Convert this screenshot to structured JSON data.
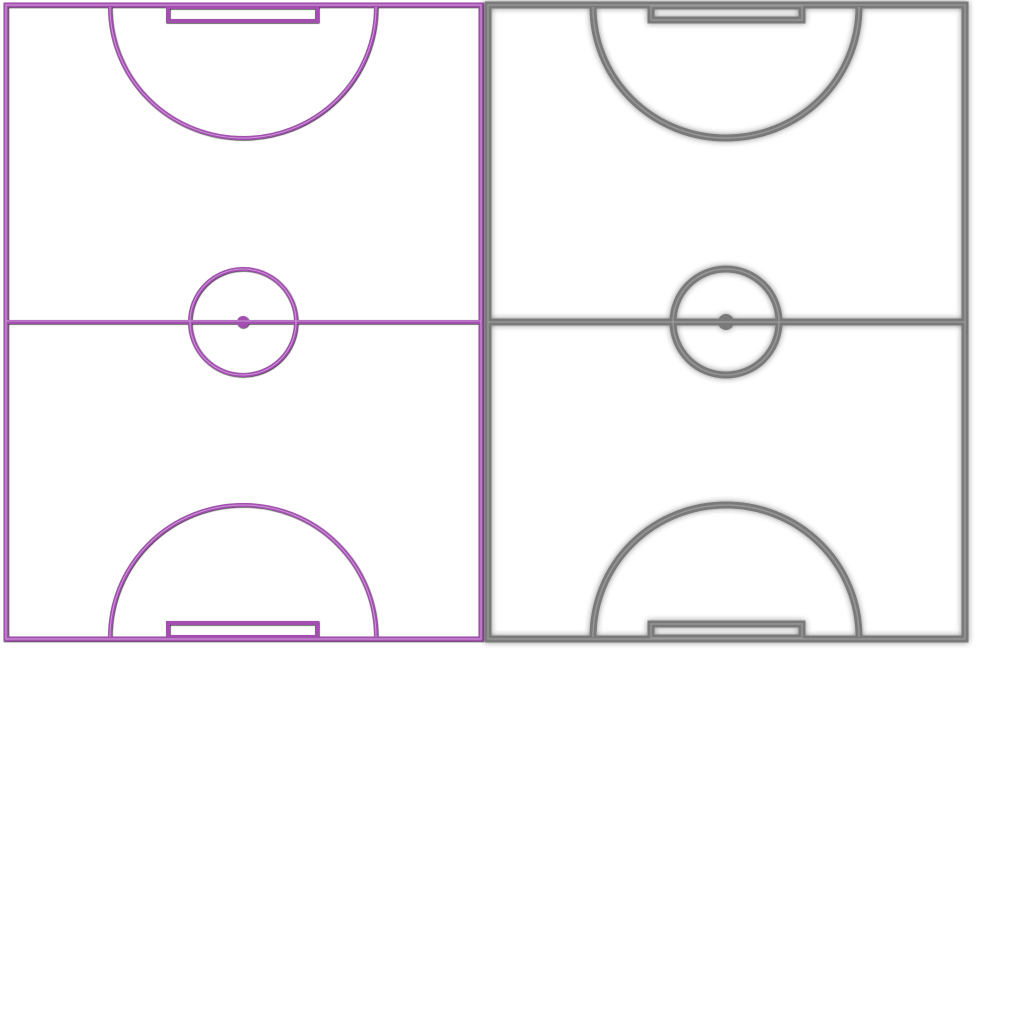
{
  "sheet": {
    "background": "#ffffff"
  },
  "courts": [
    {
      "id": "court-purple",
      "style": "embossed",
      "line_color": "#a24fb0",
      "highlight_color": "#d9a6e2",
      "shadow_color": "#7d3a88"
    },
    {
      "id": "court-gray",
      "style": "soft-shadow",
      "line_color": "#7a7a7a",
      "highlight_color": "#a8a8a8",
      "shadow_color": "#2e2e2e"
    }
  ]
}
